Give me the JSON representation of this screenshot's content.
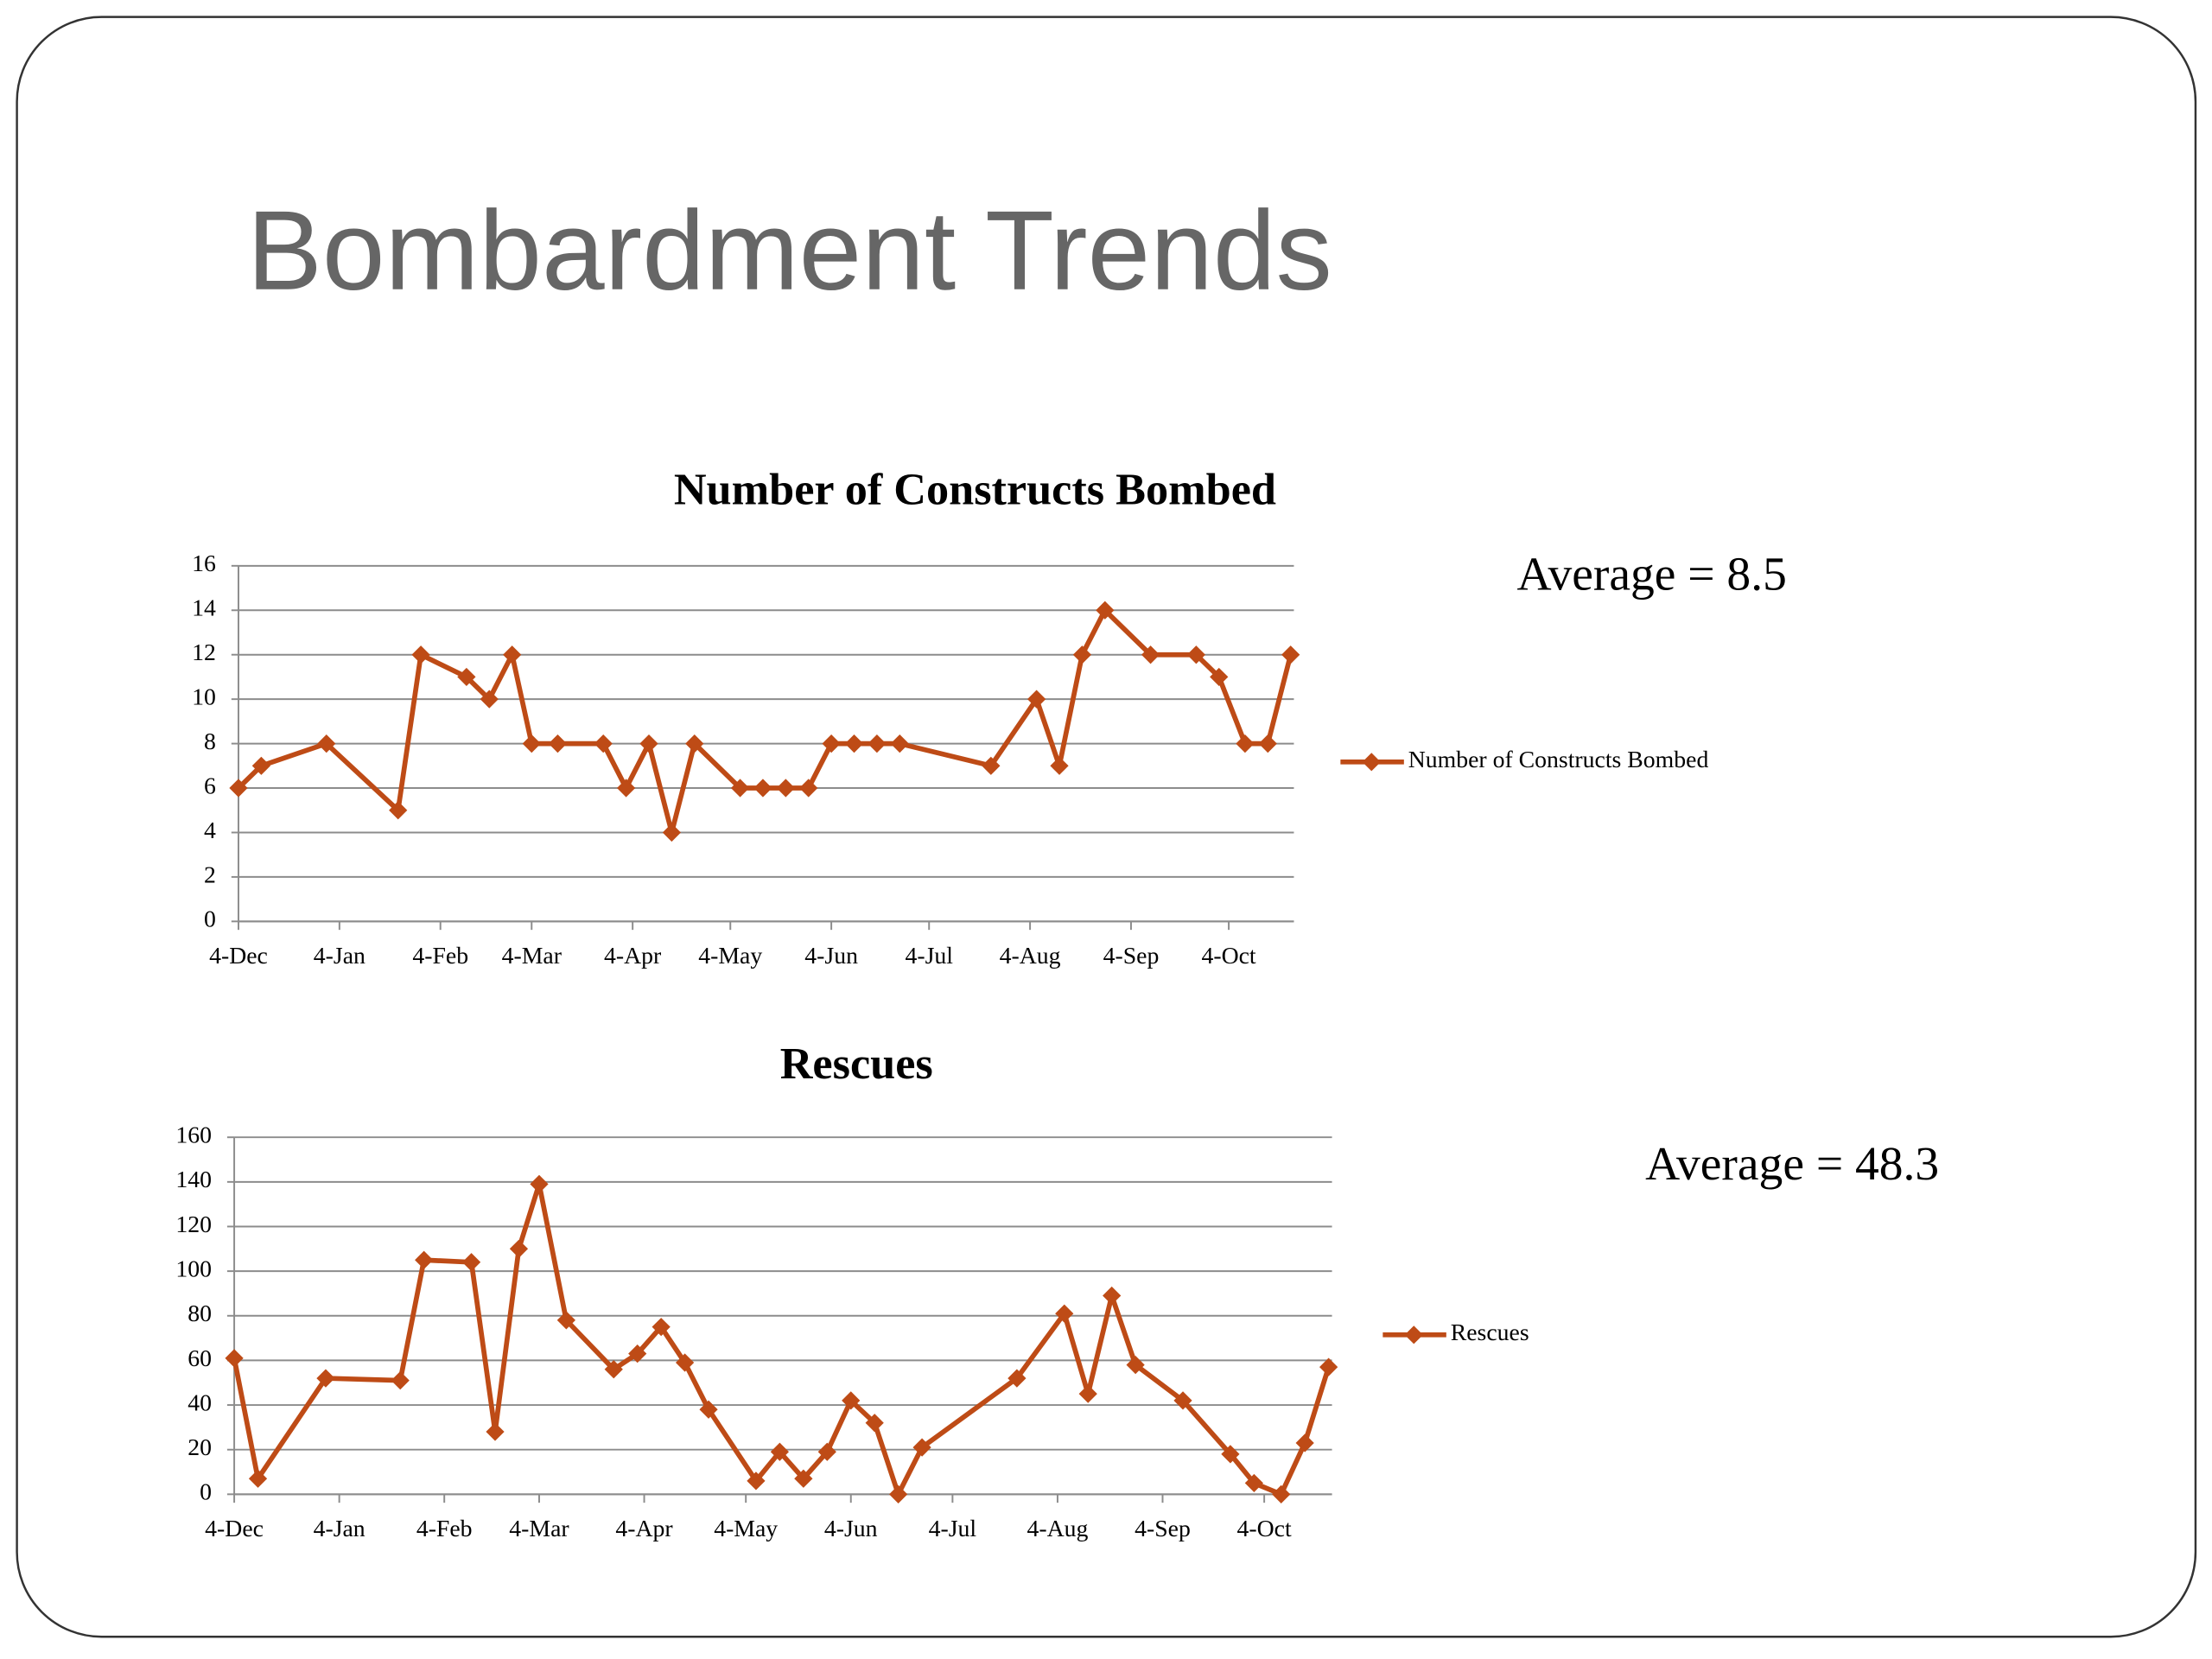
{
  "title": "Bombardment Trends",
  "chart_data": [
    {
      "type": "line",
      "title": "Number of Constructs Bombed",
      "x": [
        0,
        7,
        27,
        49,
        56,
        70,
        77,
        84,
        90,
        98,
        112,
        119,
        126,
        133,
        140,
        154,
        161,
        168,
        175,
        182,
        189,
        196,
        203,
        231,
        245,
        252,
        259,
        266,
        280,
        294,
        301,
        309,
        316,
        323
      ],
      "xlim": [
        0,
        324
      ],
      "xticks": [
        {
          "value": 0,
          "label": "4-Dec"
        },
        {
          "value": 31,
          "label": "4-Jan"
        },
        {
          "value": 62,
          "label": "4-Feb"
        },
        {
          "value": 90,
          "label": "4-Mar"
        },
        {
          "value": 121,
          "label": "4-Apr"
        },
        {
          "value": 151,
          "label": "4-May"
        },
        {
          "value": 182,
          "label": "4-Jun"
        },
        {
          "value": 212,
          "label": "4-Jul"
        },
        {
          "value": 243,
          "label": "4-Aug"
        },
        {
          "value": 274,
          "label": "4-Sep"
        },
        {
          "value": 304,
          "label": "4-Oct"
        }
      ],
      "ylim": [
        0,
        16
      ],
      "yticks": [
        0,
        2,
        4,
        6,
        8,
        10,
        12,
        14,
        16
      ],
      "grid": true,
      "legend": "right",
      "series": [
        {
          "name": "Number of Constructs Bombed",
          "color": "#be4b16",
          "values": [
            6,
            7,
            8,
            5,
            12,
            11,
            10,
            12,
            8,
            8,
            8,
            6,
            8,
            4,
            8,
            6,
            6,
            6,
            6,
            8,
            8,
            8,
            8,
            7,
            10,
            7,
            12,
            14,
            12,
            12,
            11,
            8,
            8,
            12
          ]
        }
      ],
      "annotation": "Average = 8.5"
    },
    {
      "type": "line",
      "title": "Rescues",
      "x": [
        0,
        7,
        27,
        49,
        56,
        70,
        77,
        84,
        90,
        98,
        112,
        119,
        126,
        133,
        140,
        154,
        161,
        168,
        175,
        182,
        189,
        196,
        203,
        231,
        245,
        252,
        259,
        266,
        280,
        294,
        301,
        309,
        316,
        323
      ],
      "xlim": [
        0,
        324
      ],
      "xticks": [
        {
          "value": 0,
          "label": "4-Dec"
        },
        {
          "value": 31,
          "label": "4-Jan"
        },
        {
          "value": 62,
          "label": "4-Feb"
        },
        {
          "value": 90,
          "label": "4-Mar"
        },
        {
          "value": 121,
          "label": "4-Apr"
        },
        {
          "value": 151,
          "label": "4-May"
        },
        {
          "value": 182,
          "label": "4-Jun"
        },
        {
          "value": 212,
          "label": "4-Jul"
        },
        {
          "value": 243,
          "label": "4-Aug"
        },
        {
          "value": 274,
          "label": "4-Sep"
        },
        {
          "value": 304,
          "label": "4-Oct"
        }
      ],
      "ylim": [
        0,
        160
      ],
      "yticks": [
        0,
        20,
        40,
        60,
        80,
        100,
        120,
        140,
        160
      ],
      "grid": true,
      "legend": "right",
      "series": [
        {
          "name": "Rescues",
          "color": "#be4b16",
          "values": [
            61,
            7,
            52,
            51,
            105,
            104,
            28,
            110,
            139,
            78,
            56,
            63,
            75,
            59,
            38,
            6,
            19,
            7,
            19,
            42,
            32,
            0,
            21,
            52,
            81,
            45,
            89,
            58,
            42,
            18,
            5,
            0,
            23,
            57
          ]
        }
      ],
      "annotation": "Average = 48.3"
    }
  ]
}
